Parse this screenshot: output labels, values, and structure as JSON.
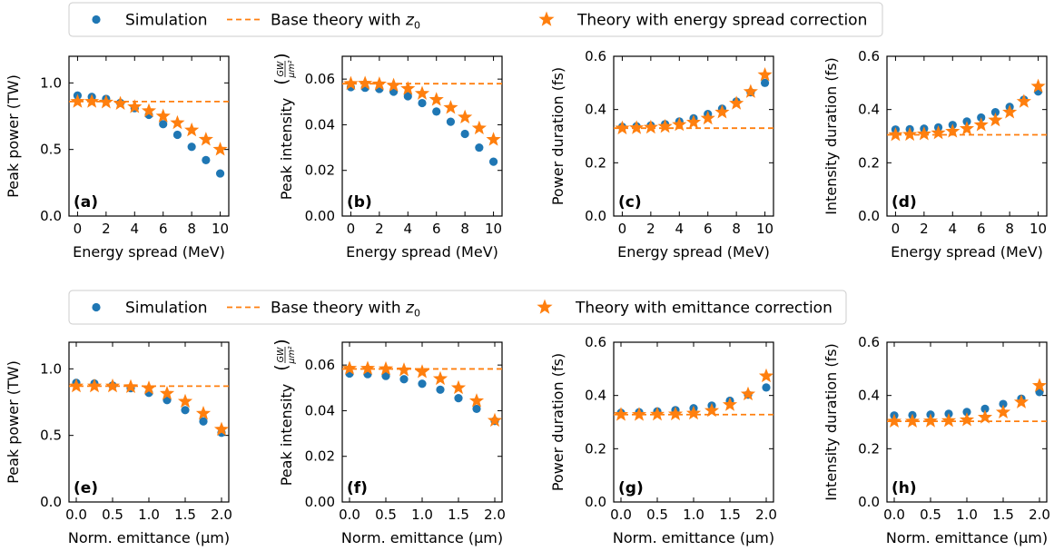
{
  "colors": {
    "simulation": "#1f77b4",
    "theory": "#ff7f0e",
    "axis": "#000000",
    "legend_border": "#cccccc"
  },
  "legends": [
    {
      "row": 0,
      "entries": [
        {
          "kind": "dot",
          "text": "Simulation"
        },
        {
          "kind": "dash",
          "text": "Base theory with ",
          "sub": "z",
          "subidx": "0"
        },
        {
          "kind": "star",
          "text": "Theory with energy spread correction"
        }
      ]
    },
    {
      "row": 1,
      "entries": [
        {
          "kind": "dot",
          "text": "Simulation"
        },
        {
          "kind": "dash",
          "text": "Base theory with ",
          "sub": "z",
          "subidx": "0"
        },
        {
          "kind": "star",
          "text": "Theory with emittance correction"
        }
      ]
    }
  ],
  "chart_data": [
    {
      "type": "scatter",
      "panel": "(a)",
      "row": 0,
      "col": 0,
      "xlabel": "Energy spread (MeV)",
      "ylabel": "Peak power (TW)",
      "xlim": [
        -0.6,
        10.6
      ],
      "ylim": [
        0.0,
        1.2
      ],
      "xticks": [
        0,
        2,
        4,
        6,
        8,
        10
      ],
      "xtick_labels": [
        "0",
        "2",
        "4",
        "6",
        "8",
        "10"
      ],
      "yticks": [
        0.0,
        0.5,
        1.0
      ],
      "ytick_labels": [
        "0.0",
        "0.5",
        "1.0"
      ],
      "x": [
        0,
        1,
        2,
        3,
        4,
        5,
        6,
        7,
        8,
        9,
        10
      ],
      "simulation": [
        0.905,
        0.895,
        0.88,
        0.85,
        0.81,
        0.76,
        0.69,
        0.61,
        0.52,
        0.42,
        0.32
      ],
      "theory_correction": [
        0.86,
        0.86,
        0.855,
        0.845,
        0.82,
        0.79,
        0.75,
        0.7,
        0.645,
        0.575,
        0.5
      ],
      "base_theory": 0.86
    },
    {
      "type": "scatter",
      "panel": "(b)",
      "row": 0,
      "col": 1,
      "xlabel": "Energy spread (MeV)",
      "ylabel": "Peak intensity",
      "ylabel_unit_num": "GW",
      "ylabel_unit_den": "μm²",
      "xlim": [
        -0.6,
        10.6
      ],
      "ylim": [
        0.0,
        0.07
      ],
      "xticks": [
        0,
        2,
        4,
        6,
        8,
        10
      ],
      "xtick_labels": [
        "0",
        "2",
        "4",
        "6",
        "8",
        "10"
      ],
      "yticks": [
        0.0,
        0.02,
        0.04,
        0.06
      ],
      "ytick_labels": [
        "0.00",
        "0.02",
        "0.04",
        "0.06"
      ],
      "x": [
        0,
        1,
        2,
        3,
        4,
        5,
        6,
        7,
        8,
        9,
        10
      ],
      "simulation": [
        0.0565,
        0.0562,
        0.0557,
        0.0545,
        0.0525,
        0.0495,
        0.0458,
        0.0413,
        0.036,
        0.03,
        0.0238
      ],
      "theory_correction": [
        0.058,
        0.0581,
        0.0578,
        0.0572,
        0.0558,
        0.0537,
        0.051,
        0.0475,
        0.0433,
        0.0385,
        0.0335
      ],
      "base_theory": 0.058
    },
    {
      "type": "scatter",
      "panel": "(c)",
      "row": 0,
      "col": 2,
      "xlabel": "Energy spread (MeV)",
      "ylabel": "Power duration (fs)",
      "xlim": [
        -0.6,
        10.6
      ],
      "ylim": [
        0.0,
        0.6
      ],
      "xticks": [
        0,
        2,
        4,
        6,
        8,
        10
      ],
      "xtick_labels": [
        "0",
        "2",
        "4",
        "6",
        "8",
        "10"
      ],
      "yticks": [
        0.0,
        0.2,
        0.4,
        0.6
      ],
      "ytick_labels": [
        "0.0",
        "0.2",
        "0.4",
        "0.6"
      ],
      "x": [
        0,
        1,
        2,
        3,
        4,
        5,
        6,
        7,
        8,
        9,
        10
      ],
      "simulation": [
        0.335,
        0.337,
        0.34,
        0.345,
        0.355,
        0.367,
        0.383,
        0.403,
        0.43,
        0.465,
        0.5
      ],
      "theory_correction": [
        0.33,
        0.331,
        0.333,
        0.336,
        0.343,
        0.352,
        0.367,
        0.39,
        0.423,
        0.467,
        0.53
      ],
      "base_theory": 0.33
    },
    {
      "type": "scatter",
      "panel": "(d)",
      "row": 0,
      "col": 3,
      "xlabel": "Energy spread (MeV)",
      "ylabel": "Intensity duration (fs)",
      "xlim": [
        -0.6,
        10.6
      ],
      "ylim": [
        0.0,
        0.6
      ],
      "xticks": [
        0,
        2,
        4,
        6,
        8,
        10
      ],
      "xtick_labels": [
        "0",
        "2",
        "4",
        "6",
        "8",
        "10"
      ],
      "yticks": [
        0.0,
        0.2,
        0.4,
        0.6
      ],
      "ytick_labels": [
        "0.0",
        "0.2",
        "0.4",
        "0.6"
      ],
      "x": [
        0,
        1,
        2,
        3,
        4,
        5,
        6,
        7,
        8,
        9,
        10
      ],
      "simulation": [
        0.325,
        0.326,
        0.328,
        0.333,
        0.342,
        0.355,
        0.37,
        0.39,
        0.41,
        0.437,
        0.468
      ],
      "theory_correction": [
        0.305,
        0.306,
        0.308,
        0.312,
        0.318,
        0.328,
        0.342,
        0.36,
        0.39,
        0.43,
        0.487
      ],
      "base_theory": 0.305
    },
    {
      "type": "scatter",
      "panel": "(e)",
      "row": 1,
      "col": 0,
      "xlabel": "Norm. emittance (μm)",
      "ylabel": "Peak power (TW)",
      "xlim": [
        -0.1,
        2.1
      ],
      "ylim": [
        0.0,
        1.2
      ],
      "xticks": [
        0.0,
        0.5,
        1.0,
        1.5,
        2.0
      ],
      "xtick_labels": [
        "0.0",
        "0.5",
        "1.0",
        "1.5",
        "2.0"
      ],
      "yticks": [
        0.0,
        0.5,
        1.0
      ],
      "ytick_labels": [
        "0.0",
        "0.5",
        "1.0"
      ],
      "x": [
        0,
        0.25,
        0.5,
        0.75,
        1.0,
        1.25,
        1.5,
        1.75,
        2.0
      ],
      "simulation": [
        0.895,
        0.89,
        0.875,
        0.855,
        0.82,
        0.765,
        0.69,
        0.605,
        0.52
      ],
      "theory_correction": [
        0.87,
        0.87,
        0.87,
        0.865,
        0.855,
        0.815,
        0.755,
        0.665,
        0.545
      ],
      "base_theory": 0.87
    },
    {
      "type": "scatter",
      "panel": "(f)",
      "row": 1,
      "col": 1,
      "xlabel": "Norm. emittance (μm)",
      "ylabel": "Peak intensity",
      "ylabel_unit_num": "GW",
      "ylabel_unit_den": "μm²",
      "xlim": [
        -0.1,
        2.1
      ],
      "ylim": [
        0.0,
        0.07
      ],
      "xticks": [
        0.0,
        0.5,
        1.0,
        1.5,
        2.0
      ],
      "xtick_labels": [
        "0.0",
        "0.5",
        "1.0",
        "1.5",
        "2.0"
      ],
      "yticks": [
        0.0,
        0.02,
        0.04,
        0.06
      ],
      "ytick_labels": [
        "0.00",
        "0.02",
        "0.04",
        "0.06"
      ],
      "x": [
        0,
        0.25,
        0.5,
        0.75,
        1.0,
        1.25,
        1.5,
        1.75,
        2.0
      ],
      "simulation": [
        0.0563,
        0.056,
        0.0552,
        0.0538,
        0.0518,
        0.0492,
        0.0455,
        0.0408,
        0.0355
      ],
      "theory_correction": [
        0.0585,
        0.0585,
        0.0583,
        0.0578,
        0.057,
        0.054,
        0.05,
        0.0443,
        0.0357
      ],
      "base_theory": 0.0583
    },
    {
      "type": "scatter",
      "panel": "(g)",
      "row": 1,
      "col": 2,
      "xlabel": "Norm. emittance (μm)",
      "ylabel": "Power duration (fs)",
      "xlim": [
        -0.1,
        2.1
      ],
      "ylim": [
        0.0,
        0.6
      ],
      "xticks": [
        0.0,
        0.5,
        1.0,
        1.5,
        2.0
      ],
      "xtick_labels": [
        "0.0",
        "0.5",
        "1.0",
        "1.5",
        "2.0"
      ],
      "yticks": [
        0.0,
        0.2,
        0.4,
        0.6
      ],
      "ytick_labels": [
        "0.0",
        "0.2",
        "0.4",
        "0.6"
      ],
      "x": [
        0,
        0.25,
        0.5,
        0.75,
        1.0,
        1.25,
        1.5,
        1.75,
        2.0
      ],
      "simulation": [
        0.335,
        0.337,
        0.34,
        0.345,
        0.352,
        0.362,
        0.38,
        0.403,
        0.43
      ],
      "theory_correction": [
        0.328,
        0.328,
        0.329,
        0.33,
        0.333,
        0.343,
        0.365,
        0.405,
        0.473
      ],
      "base_theory": 0.328
    },
    {
      "type": "scatter",
      "panel": "(h)",
      "row": 1,
      "col": 3,
      "xlabel": "Norm. emittance (μm)",
      "ylabel": "Intensity duration (fs)",
      "xlim": [
        -0.1,
        2.1
      ],
      "ylim": [
        0.0,
        0.6
      ],
      "xticks": [
        0.0,
        0.5,
        1.0,
        1.5,
        2.0
      ],
      "xtick_labels": [
        "0.0",
        "0.5",
        "1.0",
        "1.5",
        "2.0"
      ],
      "yticks": [
        0.0,
        0.2,
        0.4,
        0.6
      ],
      "ytick_labels": [
        "0.0",
        "0.2",
        "0.4",
        "0.6"
      ],
      "x": [
        0,
        0.25,
        0.5,
        0.75,
        1.0,
        1.25,
        1.5,
        1.75,
        2.0
      ],
      "simulation": [
        0.325,
        0.326,
        0.328,
        0.331,
        0.338,
        0.35,
        0.368,
        0.388,
        0.413
      ],
      "theory_correction": [
        0.303,
        0.303,
        0.304,
        0.305,
        0.308,
        0.318,
        0.337,
        0.375,
        0.437
      ],
      "base_theory": 0.303
    }
  ]
}
